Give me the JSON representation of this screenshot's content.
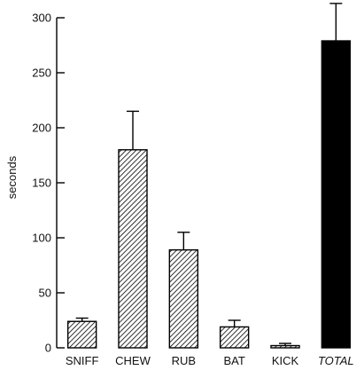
{
  "chart_data": {
    "type": "bar",
    "categories": [
      "SNIFF",
      "CHEW",
      "RUB",
      "BAT",
      "KICK",
      "TOTAL"
    ],
    "values": [
      24,
      180,
      89,
      19,
      2,
      279
    ],
    "error_upper": [
      27,
      215,
      105,
      25,
      4,
      313
    ],
    "fill_styles": [
      "hatched",
      "hatched",
      "hatched",
      "hatched",
      "hatched",
      "solid"
    ],
    "italic_categories": [
      "TOTAL"
    ],
    "ylabel": "seconds",
    "ylim": [
      0,
      300
    ],
    "yticks": [
      0,
      50,
      100,
      150,
      200,
      250,
      300
    ],
    "grid": false,
    "colors": {
      "bar_solid": "#000000",
      "hatch": "#000000",
      "axis": "#000000"
    }
  }
}
